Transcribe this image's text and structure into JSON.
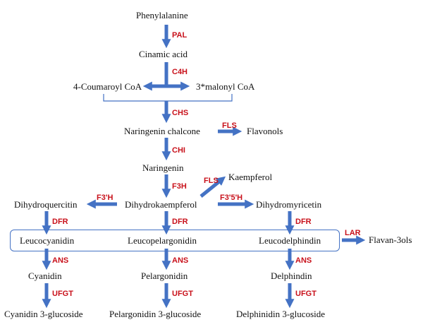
{
  "colors": {
    "arrow": "#4472c4",
    "enzyme": "#c8101a",
    "text": "#111111"
  },
  "compounds": {
    "phenylalanine": "Phenylalanine",
    "cinamic_acid": "Cinamic acid",
    "coumaroyl_coa": "4-Coumaroyl CoA",
    "malonyl_coa": "3*malonyl CoA",
    "naringenin_chalcone": "Naringenin chalcone",
    "flavonols": "Flavonols",
    "naringenin": "Naringenin",
    "kaempferol": "Kaempferol",
    "dihydroquercitin": "Dihydroquercitin",
    "dihydrokaempferol": "Dihydrokaempferol",
    "dihydromyricetin": "Dihydromyricetin",
    "leucocyanidin": "Leucocyanidin",
    "leucopelargonidin": "Leucopelargonidin",
    "leucodelphindin": "Leucodelphindin",
    "flavan_3ols": "Flavan-3ols",
    "cyanidin": "Cyanidin",
    "pelargonidin": "Pelargonidin",
    "delphindin": "Delphindin",
    "cyanidin_glucoside": "Cyanidin 3-glucoside",
    "pelargonidin_glucoside": "Pelargonidin 3-glucoside",
    "delphinidin_glucoside": "Delphinidin 3-glucoside"
  },
  "enzymes": {
    "pal": "PAL",
    "c4h": "C4H",
    "chs": "CHS",
    "fls_1": "FLS",
    "chi": "CHI",
    "fls_2": "FLS",
    "f3h": "F3H",
    "f3prime_h": "F3'H",
    "f3prime5prime_h": "F3'5'H",
    "dfr_left": "DFR",
    "dfr_center": "DFR",
    "dfr_right": "DFR",
    "lar": "LAR",
    "ans_left": "ANS",
    "ans_center": "ANS",
    "ans_right": "ANS",
    "ufgt_left": "UFGT",
    "ufgt_center": "UFGT",
    "ufgt_right": "UFGT"
  }
}
